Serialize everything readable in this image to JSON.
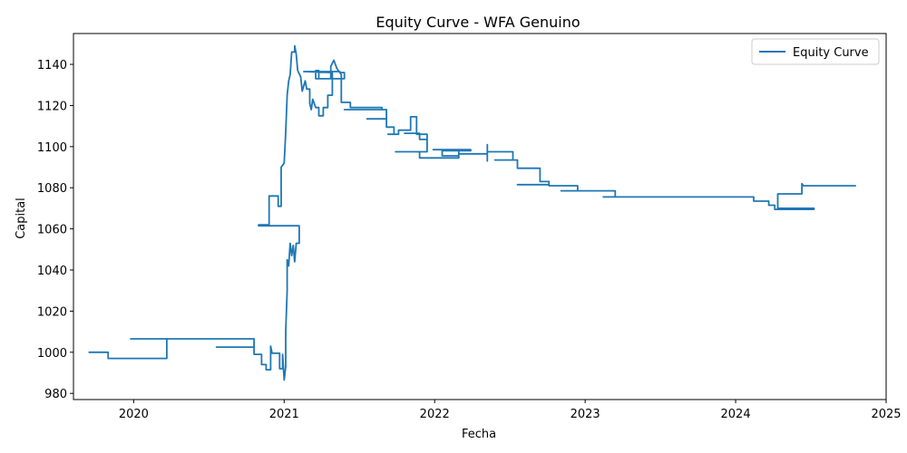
{
  "chart_data": {
    "type": "line",
    "title": "Equity Curve - WFA Genuino",
    "xlabel": "Fecha",
    "ylabel": "Capital",
    "x_ticks": [
      "2020",
      "2021",
      "2022",
      "2023",
      "2024",
      "2025"
    ],
    "y_ticks": [
      980,
      1000,
      1020,
      1040,
      1060,
      1080,
      1100,
      1120,
      1140
    ],
    "xlim": [
      2019.6,
      2025.0
    ],
    "ylim": [
      977,
      1155
    ],
    "grid": false,
    "legend_position": "top-right",
    "series": [
      {
        "name": "Equity Curve",
        "color": "#1f77b4",
        "drawstyle": "steps-post",
        "points": [
          [
            2019.7,
            1000.0
          ],
          [
            2019.83,
            1000.0
          ],
          [
            2019.83,
            997.0
          ],
          [
            2020.22,
            997.0
          ],
          [
            2020.22,
            1006.5
          ],
          [
            2019.98,
            1006.5
          ],
          [
            2020.8,
            1006.5
          ],
          [
            2020.8,
            1002.5
          ],
          [
            2020.55,
            1002.5
          ],
          [
            2020.8,
            1002.5
          ],
          [
            2020.8,
            999.0
          ],
          [
            2020.85,
            999.0
          ],
          [
            2020.85,
            994.0
          ],
          [
            2020.88,
            994.0
          ],
          [
            2020.88,
            991.5
          ],
          [
            2020.91,
            991.5
          ],
          [
            2020.91,
            1003.0
          ],
          [
            2020.92,
            999.5
          ],
          [
            2020.97,
            999.5
          ],
          [
            2020.97,
            992.0
          ],
          [
            2020.99,
            992.0
          ],
          [
            2020.99,
            999.0
          ],
          [
            2021.0,
            986.5
          ],
          [
            2021.01,
            993.0
          ],
          [
            2021.01,
            1010.0
          ],
          [
            2021.02,
            1030.0
          ],
          [
            2021.02,
            1045.0
          ],
          [
            2021.03,
            1042.0
          ],
          [
            2021.04,
            1053.0
          ],
          [
            2021.05,
            1047.0
          ],
          [
            2021.06,
            1052.0
          ],
          [
            2021.07,
            1044.0
          ],
          [
            2021.08,
            1053.0
          ],
          [
            2021.1,
            1053.0
          ],
          [
            2021.1,
            1061.5
          ],
          [
            2020.83,
            1061.5
          ],
          [
            2020.83,
            1062.0
          ],
          [
            2020.9,
            1062.0
          ],
          [
            2020.9,
            1076.0
          ],
          [
            2020.96,
            1076.0
          ],
          [
            2020.96,
            1071.0
          ],
          [
            2020.98,
            1071.0
          ],
          [
            2020.98,
            1090.0
          ],
          [
            2021.0,
            1092.0
          ],
          [
            2021.01,
            1107.0
          ],
          [
            2021.02,
            1125.0
          ],
          [
            2021.03,
            1132.0
          ],
          [
            2021.04,
            1135.0
          ],
          [
            2021.05,
            1146.0
          ],
          [
            2021.07,
            1146.0
          ],
          [
            2021.07,
            1149.0
          ],
          [
            2021.08,
            1145.0
          ],
          [
            2021.09,
            1137.0
          ],
          [
            2021.11,
            1134.0
          ],
          [
            2021.12,
            1127.0
          ],
          [
            2021.14,
            1132.0
          ],
          [
            2021.15,
            1128.0
          ],
          [
            2021.17,
            1128.0
          ],
          [
            2021.17,
            1121.0
          ],
          [
            2021.18,
            1118.0
          ],
          [
            2021.19,
            1123.0
          ],
          [
            2021.21,
            1119.0
          ],
          [
            2021.23,
            1119.0
          ],
          [
            2021.23,
            1115.0
          ],
          [
            2021.26,
            1115.0
          ],
          [
            2021.26,
            1119.0
          ],
          [
            2021.29,
            1119.0
          ],
          [
            2021.29,
            1125.0
          ],
          [
            2021.32,
            1125.0
          ],
          [
            2021.32,
            1136.0
          ],
          [
            2021.13,
            1136.5
          ],
          [
            2021.37,
            1136.5
          ],
          [
            2021.37,
            1136.0
          ],
          [
            2021.4,
            1136.0
          ],
          [
            2021.4,
            1133.0
          ],
          [
            2021.21,
            1133.0
          ],
          [
            2021.21,
            1137.0
          ],
          [
            2021.23,
            1137.0
          ],
          [
            2021.23,
            1133.0
          ],
          [
            2021.31,
            1133.0
          ],
          [
            2021.31,
            1139.0
          ],
          [
            2021.33,
            1142.0
          ],
          [
            2021.35,
            1138.0
          ],
          [
            2021.38,
            1135.0
          ],
          [
            2021.38,
            1121.5
          ],
          [
            2021.44,
            1121.5
          ],
          [
            2021.44,
            1119.0
          ],
          [
            2021.65,
            1119.0
          ],
          [
            2021.65,
            1118.0
          ],
          [
            2021.4,
            1118.0
          ],
          [
            2021.68,
            1118.0
          ],
          [
            2021.68,
            1113.5
          ],
          [
            2021.55,
            1113.5
          ],
          [
            2021.68,
            1113.5
          ],
          [
            2021.68,
            1109.5
          ],
          [
            2021.73,
            1109.5
          ],
          [
            2021.73,
            1106.0
          ],
          [
            2021.69,
            1106.0
          ],
          [
            2021.76,
            1106.0
          ],
          [
            2021.76,
            1108.0
          ],
          [
            2021.84,
            1108.0
          ],
          [
            2021.84,
            1114.5
          ],
          [
            2021.88,
            1114.5
          ],
          [
            2021.88,
            1106.5
          ],
          [
            2021.8,
            1106.5
          ],
          [
            2021.9,
            1106.5
          ],
          [
            2021.9,
            1103.5
          ],
          [
            2021.95,
            1103.5
          ],
          [
            2021.95,
            1106.0
          ],
          [
            2021.88,
            1106.0
          ],
          [
            2021.95,
            1106.0
          ],
          [
            2021.95,
            1097.5
          ],
          [
            2021.74,
            1097.5
          ],
          [
            2021.9,
            1097.5
          ],
          [
            2021.9,
            1094.5
          ],
          [
            2022.16,
            1094.5
          ],
          [
            2022.16,
            1098.5
          ],
          [
            2021.99,
            1098.5
          ],
          [
            2022.24,
            1098.5
          ],
          [
            2022.24,
            1098.0
          ],
          [
            2022.05,
            1098.0
          ],
          [
            2022.05,
            1095.5
          ],
          [
            2022.16,
            1095.5
          ],
          [
            2022.16,
            1096.5
          ],
          [
            2022.35,
            1096.5
          ],
          [
            2022.35,
            1093.0
          ],
          [
            2022.35,
            1101.0
          ],
          [
            2022.35,
            1097.5
          ],
          [
            2022.52,
            1097.5
          ],
          [
            2022.52,
            1093.5
          ],
          [
            2022.4,
            1093.5
          ],
          [
            2022.55,
            1093.5
          ],
          [
            2022.55,
            1089.5
          ],
          [
            2022.7,
            1089.5
          ],
          [
            2022.7,
            1083.0
          ],
          [
            2022.76,
            1083.0
          ],
          [
            2022.76,
            1081.5
          ],
          [
            2022.55,
            1081.5
          ],
          [
            2022.76,
            1081.5
          ],
          [
            2022.76,
            1081.0
          ],
          [
            2022.95,
            1081.0
          ],
          [
            2022.95,
            1078.5
          ],
          [
            2022.84,
            1078.5
          ],
          [
            2023.2,
            1078.5
          ],
          [
            2023.2,
            1075.5
          ],
          [
            2023.12,
            1075.5
          ],
          [
            2024.12,
            1075.5
          ],
          [
            2024.12,
            1073.5
          ],
          [
            2024.22,
            1073.5
          ],
          [
            2024.22,
            1071.5
          ],
          [
            2024.26,
            1071.5
          ],
          [
            2024.26,
            1069.5
          ],
          [
            2024.52,
            1069.5
          ],
          [
            2024.52,
            1070.0
          ],
          [
            2024.28,
            1070.0
          ],
          [
            2024.28,
            1077.0
          ],
          [
            2024.44,
            1077.0
          ],
          [
            2024.44,
            1082.0
          ],
          [
            2024.45,
            1081.0
          ],
          [
            2024.8,
            1081.0
          ]
        ]
      }
    ]
  }
}
